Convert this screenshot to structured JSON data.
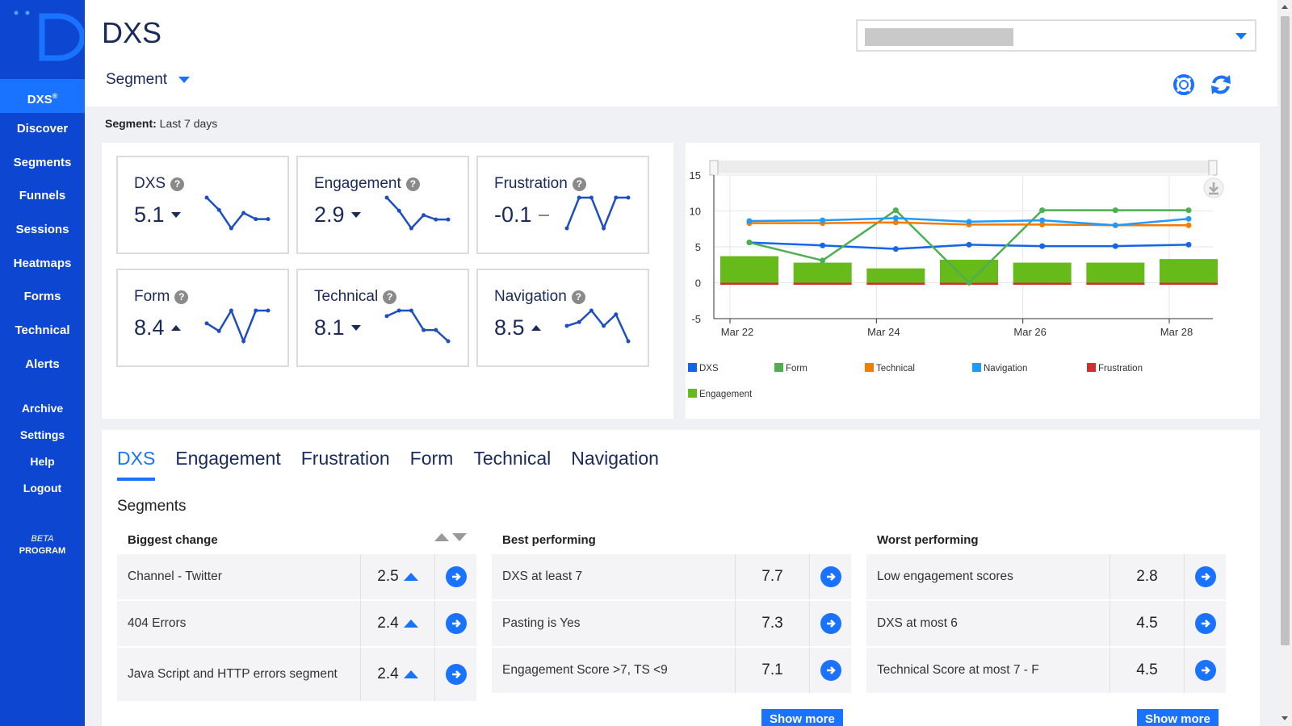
{
  "sidebar": {
    "active": {
      "label": "DXS",
      "sup": "®"
    },
    "items": [
      {
        "label": "Discover",
        "name": "discover"
      },
      {
        "label": "Segments",
        "name": "segments"
      },
      {
        "label": "Funnels",
        "name": "funnels"
      },
      {
        "label": "Sessions",
        "name": "sessions"
      },
      {
        "label": "Heatmaps",
        "name": "heatmaps"
      },
      {
        "label": "Forms",
        "name": "forms"
      },
      {
        "label": "Technical",
        "name": "technical"
      },
      {
        "label": "Alerts",
        "name": "alerts"
      }
    ],
    "secondary": [
      {
        "label": "Archive",
        "name": "archive"
      },
      {
        "label": "Settings",
        "name": "settings"
      },
      {
        "label": "Help",
        "name": "help"
      },
      {
        "label": "Logout",
        "name": "logout"
      }
    ],
    "beta_line1": "BETA",
    "beta_line2": "PROGRAM"
  },
  "header": {
    "title": "DXS",
    "segment_dropdown": "Segment",
    "segment_label_key": "Segment:",
    "segment_label_value": " Last 7 days"
  },
  "kpis": [
    {
      "name": "DXS",
      "value": "5.1",
      "trend": "down",
      "spark": [
        5.6,
        5.2,
        4.6,
        5.1,
        4.9,
        4.9
      ]
    },
    {
      "name": "Engagement",
      "value": "2.9",
      "trend": "down",
      "spark": [
        3.4,
        3.1,
        2.7,
        3.0,
        2.9,
        2.9
      ]
    },
    {
      "name": "Frustration",
      "value": "-0.1",
      "trend": "flat",
      "spark": [
        -0.6,
        0.2,
        0.2,
        -0.6,
        0.2,
        0.2
      ]
    },
    {
      "name": "Form",
      "value": "8.4",
      "trend": "up",
      "spark": [
        8.3,
        8.0,
        8.8,
        7.6,
        8.8,
        8.8
      ]
    },
    {
      "name": "Technical",
      "value": "8.1",
      "trend": "down",
      "spark": [
        8.4,
        8.6,
        8.6,
        7.9,
        7.9,
        7.5
      ]
    },
    {
      "name": "Navigation",
      "value": "8.5",
      "trend": "up",
      "spark": [
        8.4,
        8.5,
        8.8,
        8.4,
        8.7,
        8.0
      ]
    }
  ],
  "chart_data": {
    "type": "line",
    "categories": [
      "Mar 22",
      "Mar 23",
      "Mar 24",
      "Mar 25",
      "Mar 26",
      "Mar 27",
      "Mar 28"
    ],
    "x_tick_labels": [
      "Mar 22",
      "Mar 24",
      "Mar 26",
      "Mar 28"
    ],
    "ylim": [
      -5,
      15
    ],
    "y_ticks": [
      -5,
      0,
      5,
      10,
      15
    ],
    "grid": true,
    "legend_position": "bottom",
    "series": [
      {
        "name": "DXS",
        "color": "#1565e8",
        "values": [
          5.6,
          5.2,
          4.7,
          5.3,
          5.1,
          5.1,
          5.3
        ]
      },
      {
        "name": "Form",
        "color": "#4caf50",
        "values": [
          5.6,
          3.1,
          10.1,
          0.0,
          10.1,
          10.1,
          10.1
        ]
      },
      {
        "name": "Technical",
        "color": "#f57c00",
        "values": [
          8.3,
          8.3,
          8.4,
          8.1,
          8.1,
          8.0,
          8.0
        ]
      },
      {
        "name": "Navigation",
        "color": "#1e9bff",
        "values": [
          8.6,
          8.7,
          9.0,
          8.5,
          8.7,
          8.0,
          8.9
        ]
      },
      {
        "name": "Frustration",
        "color": "#d32f2f",
        "type": "bar_base",
        "values": [
          -0.1,
          -0.1,
          -0.1,
          -0.1,
          -0.1,
          -0.1,
          -0.1
        ]
      },
      {
        "name": "Engagement",
        "color": "#66bb1a",
        "type": "bar",
        "values": [
          3.7,
          2.8,
          2.0,
          3.2,
          2.8,
          2.8,
          3.3
        ]
      }
    ]
  },
  "tabs": [
    {
      "label": "DXS",
      "active": true
    },
    {
      "label": "Engagement"
    },
    {
      "label": "Frustration"
    },
    {
      "label": "Form"
    },
    {
      "label": "Technical"
    },
    {
      "label": "Navigation"
    }
  ],
  "segments": {
    "title": "Segments",
    "biggest_change": {
      "title": "Biggest change",
      "rows": [
        {
          "label": "Channel - Twitter",
          "value": "2.5"
        },
        {
          "label": "404 Errors",
          "value": "2.4"
        },
        {
          "label": "Java Script and HTTP errors segment",
          "value": "2.4"
        }
      ]
    },
    "best_performing": {
      "title": "Best performing",
      "rows": [
        {
          "label": "DXS at least 7",
          "value": "7.7"
        },
        {
          "label": "Pasting is Yes",
          "value": "7.3"
        },
        {
          "label": "Engagement Score >7, TS <9",
          "value": "7.1"
        }
      ],
      "show_more": "Show more"
    },
    "worst_performing": {
      "title": "Worst performing",
      "rows": [
        {
          "label": "Low engagement scores",
          "value": "2.8"
        },
        {
          "label": "DXS at most 6",
          "value": "4.5"
        },
        {
          "label": "Technical Score at most 7 - F",
          "value": "4.5"
        }
      ],
      "show_more": "Show more"
    }
  },
  "colors": {
    "sidebar": "#0d47d1",
    "accent": "#1a73ff",
    "navy": "#1a2a5a"
  },
  "icons": {
    "help": "help-lifebuoy-icon",
    "refresh": "refresh-icon",
    "download": "download-icon",
    "go": "arrow-right-circle-icon"
  }
}
